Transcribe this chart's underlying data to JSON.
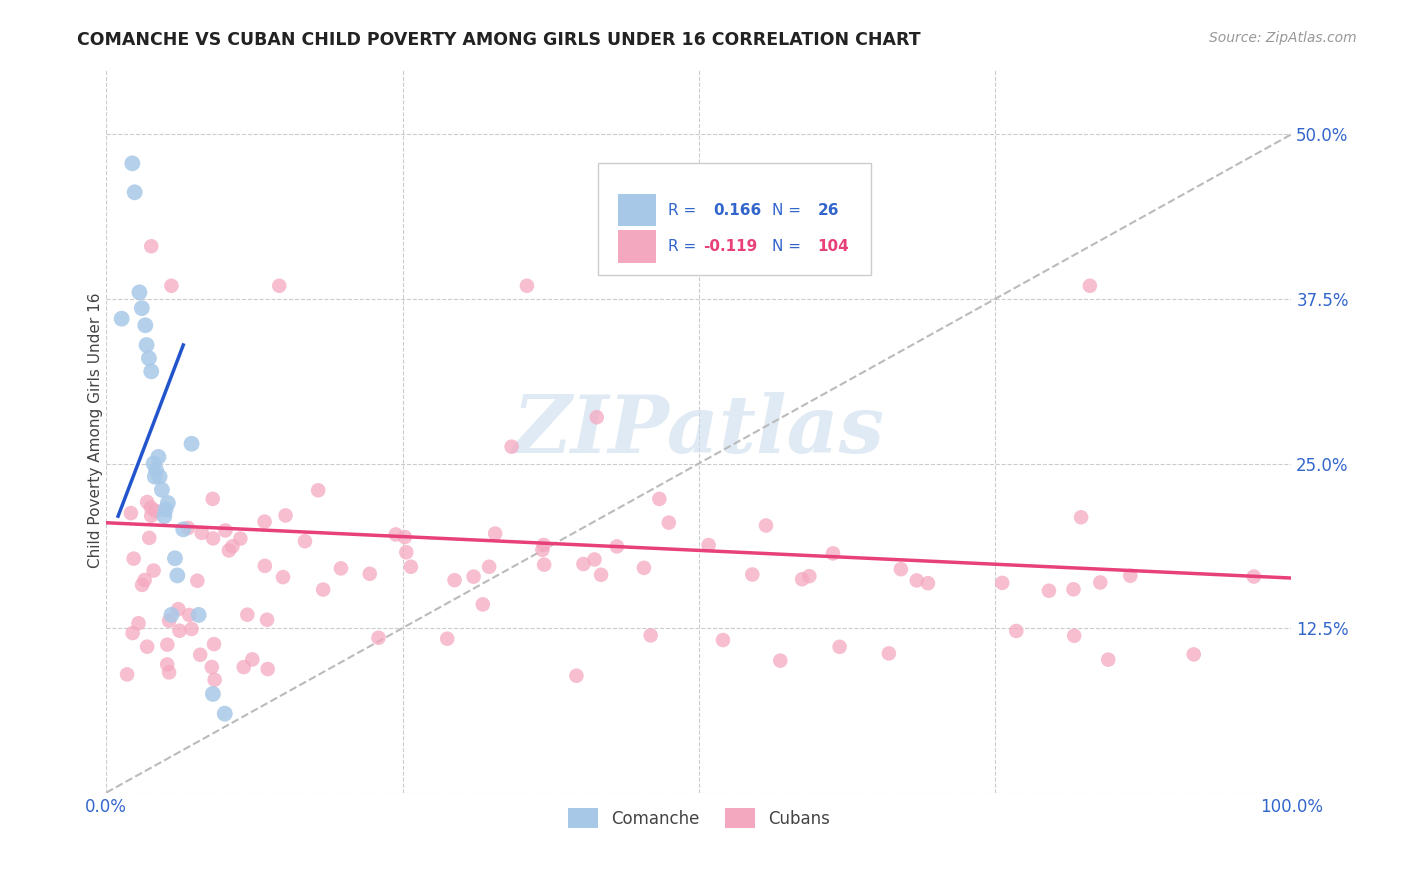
{
  "title": "COMANCHE VS CUBAN CHILD POVERTY AMONG GIRLS UNDER 16 CORRELATION CHART",
  "source": "Source: ZipAtlas.com",
  "ylabel": "Child Poverty Among Girls Under 16",
  "xlim": [
    0.0,
    1.0
  ],
  "ylim": [
    0.0,
    0.55
  ],
  "xticks": [
    0.0,
    0.25,
    0.5,
    0.75,
    1.0
  ],
  "yticks": [
    0.0,
    0.125,
    0.25,
    0.375,
    0.5
  ],
  "yticklabels_right": [
    "",
    "12.5%",
    "25.0%",
    "37.5%",
    "50.0%"
  ],
  "comanche_color": "#A8C8E8",
  "cuban_color": "#F4A8C0",
  "comanche_line_color": "#2255CC",
  "cuban_line_color": "#E8407A",
  "dashed_line_color": "#BBBBBB",
  "R_comanche": 0.166,
  "N_comanche": 26,
  "R_cuban": -0.119,
  "N_cuban": 104,
  "legend_text_color": "#3366CC",
  "cuban_legend_text_color": "#E8407A",
  "watermark": "ZIPatlas",
  "background_color": "#FFFFFF",
  "comanche_x": [
    0.013,
    0.022,
    0.024,
    0.027,
    0.028,
    0.03,
    0.031,
    0.033,
    0.034,
    0.035,
    0.037,
    0.038,
    0.04,
    0.041,
    0.042,
    0.044,
    0.045,
    0.047,
    0.049,
    0.05,
    0.052,
    0.055,
    0.06,
    0.065,
    0.075,
    0.095
  ],
  "comanche_y": [
    0.355,
    0.475,
    0.455,
    0.385,
    0.37,
    0.355,
    0.34,
    0.33,
    0.32,
    0.31,
    0.27,
    0.26,
    0.25,
    0.24,
    0.23,
    0.28,
    0.245,
    0.22,
    0.21,
    0.2,
    0.215,
    0.135,
    0.175,
    0.195,
    0.135,
    0.075
  ],
  "cuban_x": [
    0.015,
    0.022,
    0.026,
    0.03,
    0.033,
    0.036,
    0.038,
    0.04,
    0.042,
    0.044,
    0.047,
    0.05,
    0.052,
    0.055,
    0.057,
    0.06,
    0.062,
    0.065,
    0.068,
    0.07,
    0.073,
    0.076,
    0.08,
    0.083,
    0.086,
    0.09,
    0.093,
    0.096,
    0.1,
    0.104,
    0.108,
    0.112,
    0.116,
    0.12,
    0.125,
    0.13,
    0.136,
    0.142,
    0.148,
    0.155,
    0.16,
    0.167,
    0.173,
    0.18,
    0.187,
    0.194,
    0.2,
    0.208,
    0.215,
    0.222,
    0.23,
    0.238,
    0.246,
    0.255,
    0.263,
    0.272,
    0.28,
    0.29,
    0.3,
    0.31,
    0.32,
    0.332,
    0.344,
    0.356,
    0.368,
    0.381,
    0.394,
    0.408,
    0.422,
    0.437,
    0.452,
    0.467,
    0.483,
    0.499,
    0.516,
    0.533,
    0.55,
    0.568,
    0.587,
    0.606,
    0.625,
    0.645,
    0.665,
    0.686,
    0.707,
    0.728,
    0.75,
    0.772,
    0.795,
    0.818,
    0.841,
    0.865,
    0.889,
    0.914,
    0.94,
    0.966,
    0.979,
    0.99,
    0.993,
    0.996,
    0.038,
    0.055,
    0.072,
    0.144
  ],
  "cuban_y": [
    0.205,
    0.195,
    0.415,
    0.195,
    0.195,
    0.185,
    0.195,
    0.19,
    0.185,
    0.175,
    0.185,
    0.195,
    0.195,
    0.185,
    0.19,
    0.17,
    0.175,
    0.22,
    0.2,
    0.185,
    0.2,
    0.19,
    0.195,
    0.175,
    0.17,
    0.205,
    0.175,
    0.195,
    0.215,
    0.225,
    0.195,
    0.2,
    0.19,
    0.185,
    0.165,
    0.2,
    0.215,
    0.185,
    0.185,
    0.195,
    0.19,
    0.215,
    0.205,
    0.18,
    0.19,
    0.195,
    0.195,
    0.205,
    0.195,
    0.19,
    0.2,
    0.19,
    0.195,
    0.185,
    0.175,
    0.18,
    0.19,
    0.195,
    0.19,
    0.18,
    0.2,
    0.175,
    0.18,
    0.185,
    0.19,
    0.175,
    0.18,
    0.17,
    0.185,
    0.18,
    0.175,
    0.17,
    0.175,
    0.165,
    0.17,
    0.175,
    0.165,
    0.175,
    0.165,
    0.17,
    0.165,
    0.16,
    0.155,
    0.165,
    0.155,
    0.16,
    0.155,
    0.15,
    0.145,
    0.155,
    0.145,
    0.15,
    0.14,
    0.145,
    0.14,
    0.135,
    0.145,
    0.135,
    0.13,
    0.125,
    0.175,
    0.385,
    0.365,
    0.385
  ],
  "com_line_x": [
    0.01,
    0.065
  ],
  "com_line_y": [
    0.21,
    0.34
  ],
  "cub_line_x": [
    0.0,
    1.0
  ],
  "cub_line_y": [
    0.205,
    0.163
  ]
}
